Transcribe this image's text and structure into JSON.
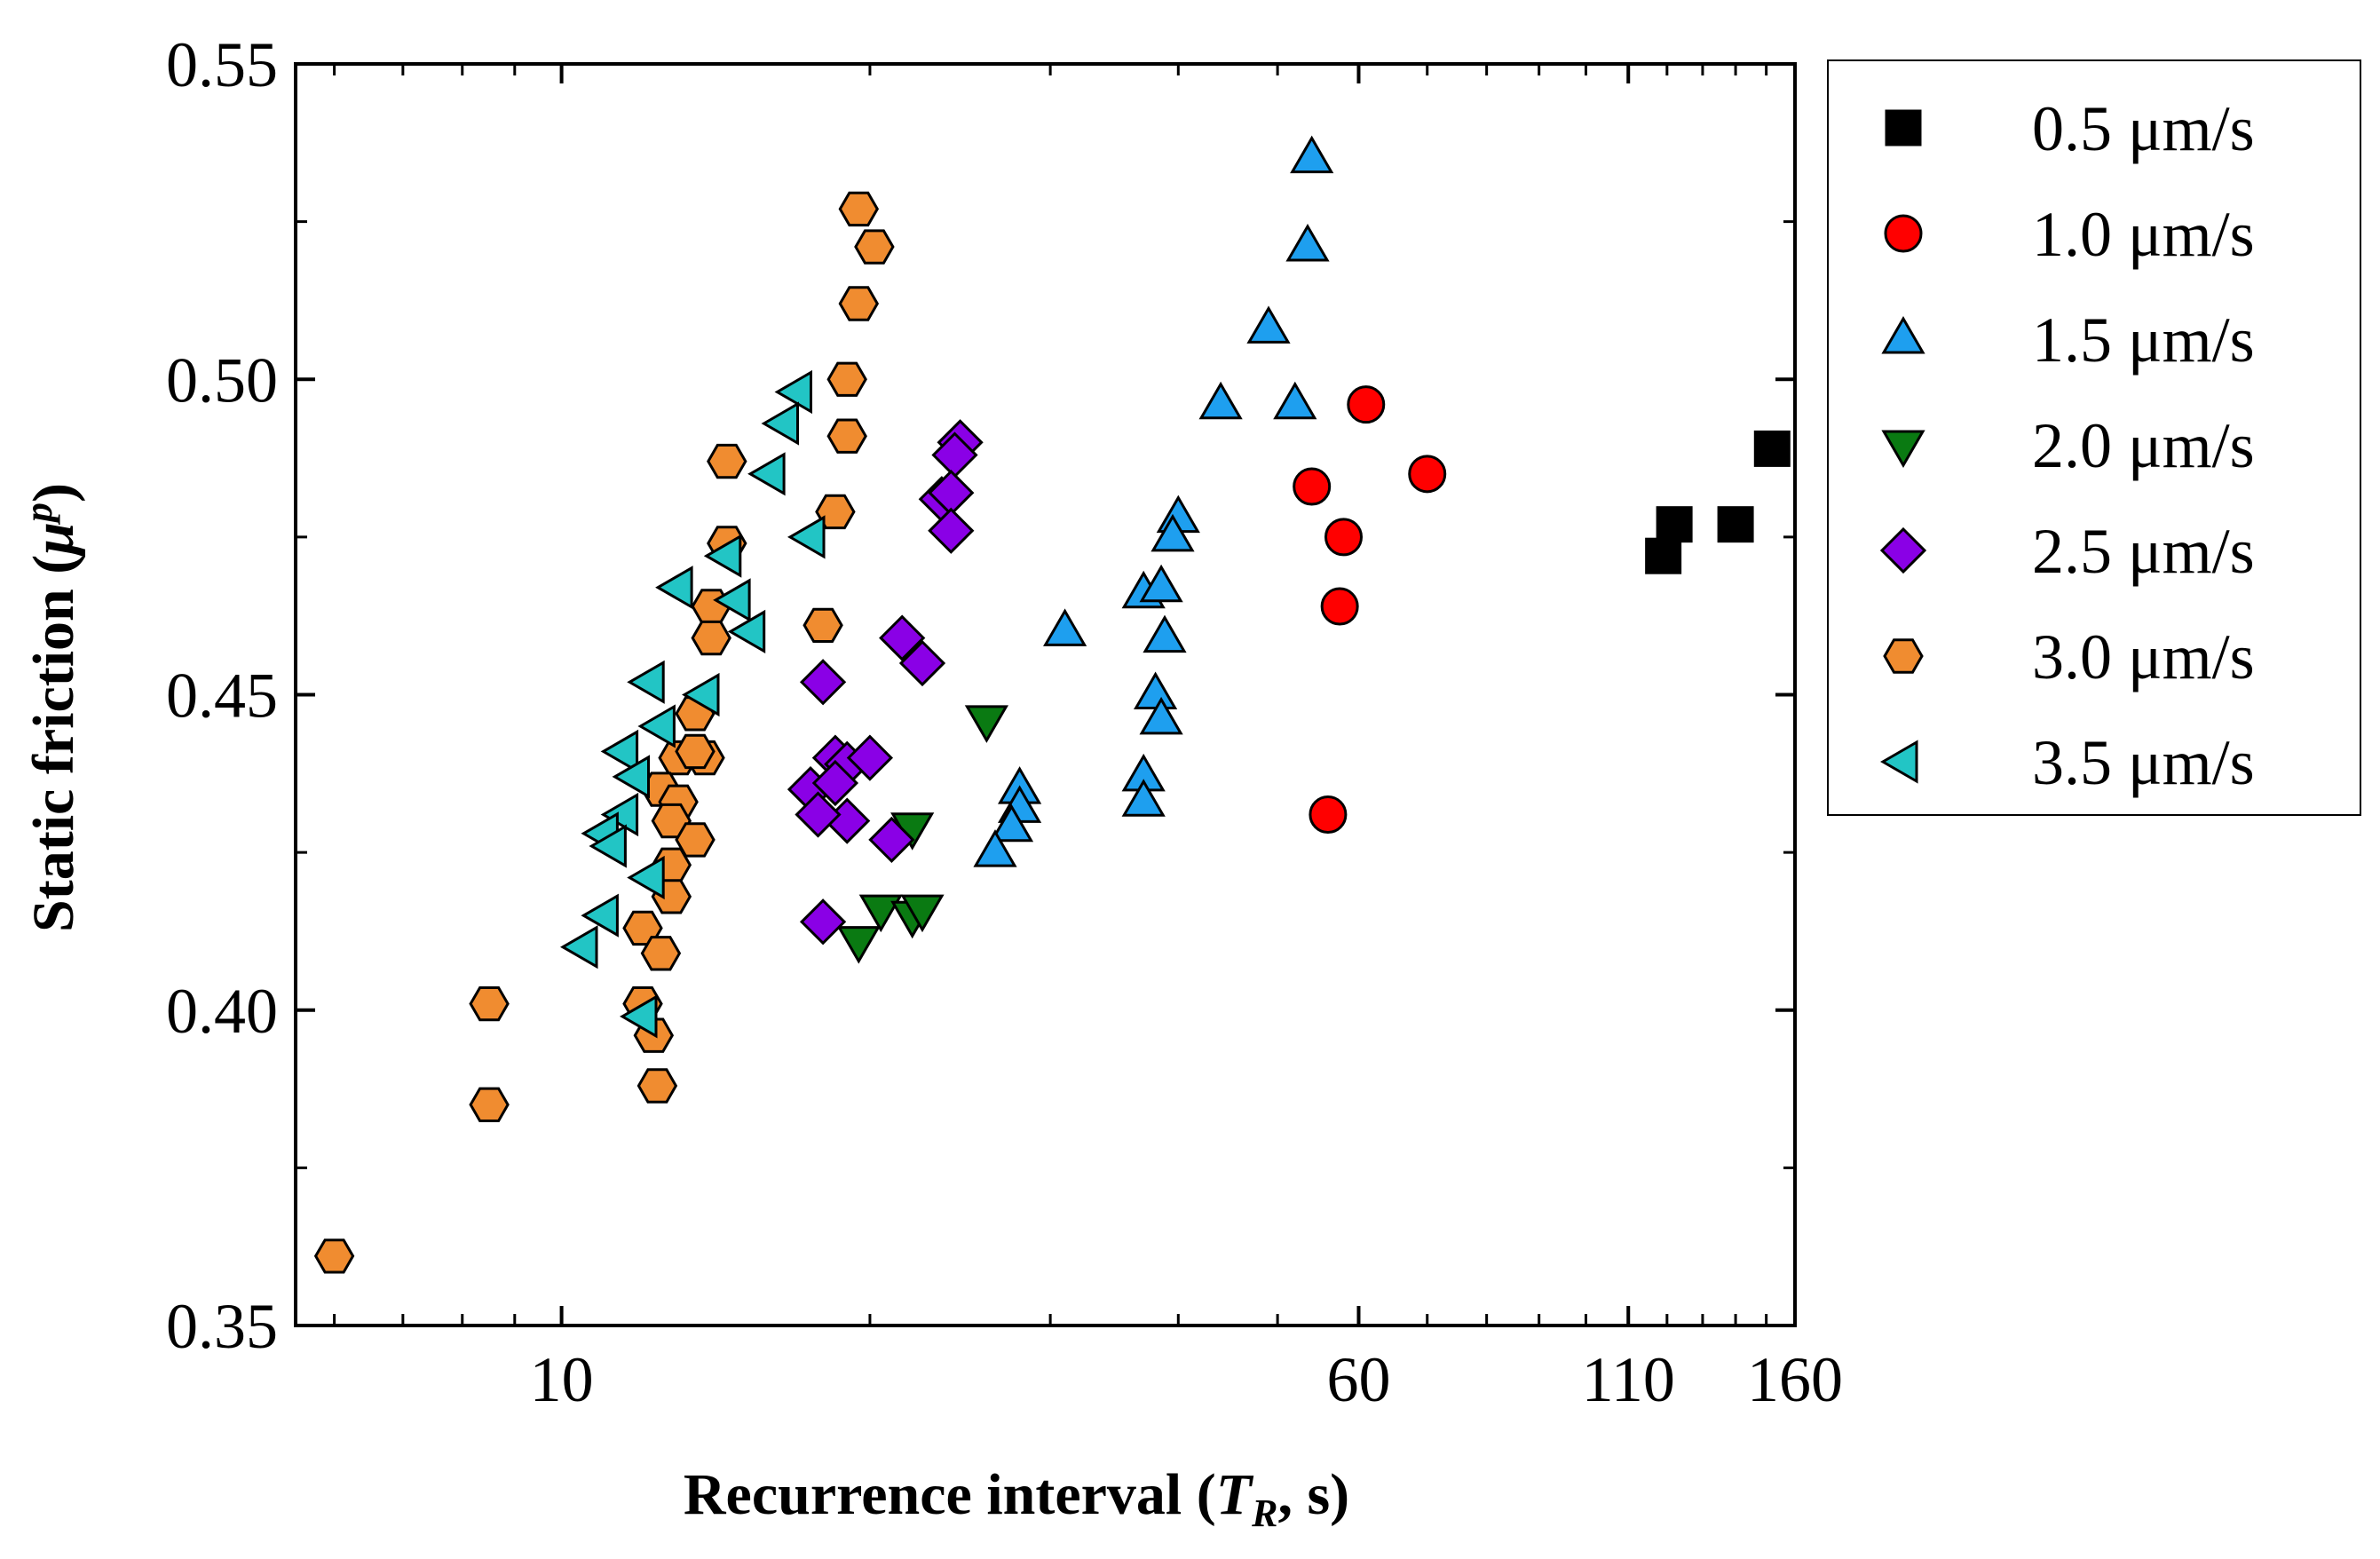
{
  "chart_data": {
    "type": "scatter",
    "title": "",
    "xlabel": {
      "prefix": "Recurrence interval (",
      "var": "T",
      "sub": "R",
      "suffix": ", s)"
    },
    "ylabel": {
      "prefix": "Static friction (",
      "var": "μ",
      "sup": "p",
      "suffix": ")"
    },
    "xscale": "log",
    "xlim": [
      5.5,
      160
    ],
    "ylim": [
      0.35,
      0.55
    ],
    "grid": false,
    "legend_position": "outside-right",
    "x_ticks": [
      {
        "value": 10,
        "label": "10"
      },
      {
        "value": 60,
        "label": "60"
      },
      {
        "value": 110,
        "label": "110"
      },
      {
        "value": 160,
        "label": "160"
      }
    ],
    "y_ticks": [
      {
        "value": 0.35,
        "label": "0.35"
      },
      {
        "value": 0.4,
        "label": "0.40"
      },
      {
        "value": 0.45,
        "label": "0.45"
      },
      {
        "value": 0.5,
        "label": "0.50"
      },
      {
        "value": 0.55,
        "label": "0.55"
      }
    ],
    "series": [
      {
        "name": "0.5 μm/s",
        "marker": "square",
        "color": "#000000",
        "points": [
          [
            119,
            0.472
          ],
          [
            122,
            0.477
          ],
          [
            140,
            0.477
          ],
          [
            152,
            0.489
          ]
        ]
      },
      {
        "name": "1.0 μm/s",
        "marker": "circle",
        "color": "#ff0000",
        "points": [
          [
            54,
            0.483
          ],
          [
            58,
            0.475
          ],
          [
            61,
            0.496
          ],
          [
            57.5,
            0.464
          ],
          [
            70,
            0.485
          ],
          [
            56,
            0.431
          ]
        ]
      },
      {
        "name": "1.5 μm/s",
        "marker": "triangle-up",
        "color": "#1e9fef",
        "points": [
          [
            54,
            0.535
          ],
          [
            53.5,
            0.521
          ],
          [
            49,
            0.508
          ],
          [
            44,
            0.496
          ],
          [
            52,
            0.496
          ],
          [
            40,
            0.478
          ],
          [
            39.5,
            0.475
          ],
          [
            37,
            0.466
          ],
          [
            38.5,
            0.467
          ],
          [
            38.8,
            0.459
          ],
          [
            31,
            0.46
          ],
          [
            38,
            0.45
          ],
          [
            38.5,
            0.446
          ],
          [
            37,
            0.437
          ],
          [
            37,
            0.433
          ],
          [
            28,
            0.435
          ],
          [
            28,
            0.432
          ],
          [
            27.5,
            0.429
          ],
          [
            26.5,
            0.425
          ]
        ]
      },
      {
        "name": "2.0 μm/s",
        "marker": "triangle-down",
        "color": "#0a7a12",
        "points": [
          [
            26,
            0.446
          ],
          [
            22,
            0.429
          ],
          [
            20.5,
            0.416
          ],
          [
            22,
            0.415
          ],
          [
            22.5,
            0.416
          ],
          [
            19.5,
            0.411
          ]
        ]
      },
      {
        "name": "2.5 μm/s",
        "marker": "diamond",
        "color": "#8a00e6",
        "points": [
          [
            24.5,
            0.49
          ],
          [
            24.2,
            0.488
          ],
          [
            23.5,
            0.481
          ],
          [
            24,
            0.482
          ],
          [
            24,
            0.476
          ],
          [
            21.5,
            0.459
          ],
          [
            22.5,
            0.455
          ],
          [
            18,
            0.452
          ],
          [
            18.5,
            0.44
          ],
          [
            19,
            0.439
          ],
          [
            20,
            0.44
          ],
          [
            17.5,
            0.435
          ],
          [
            18.5,
            0.436
          ],
          [
            19,
            0.43
          ],
          [
            17.8,
            0.431
          ],
          [
            21,
            0.427
          ],
          [
            18,
            0.414
          ]
        ]
      },
      {
        "name": "3.0 μm/s",
        "marker": "hexagon",
        "color": "#f08c30",
        "points": [
          [
            19.5,
            0.527
          ],
          [
            20.2,
            0.521
          ],
          [
            19.5,
            0.512
          ],
          [
            19,
            0.5
          ],
          [
            18.5,
            0.479
          ],
          [
            19,
            0.491
          ],
          [
            14.5,
            0.487
          ],
          [
            14.5,
            0.474
          ],
          [
            18,
            0.461
          ],
          [
            14,
            0.464
          ],
          [
            14,
            0.459
          ],
          [
            13.5,
            0.447
          ],
          [
            13,
            0.44
          ],
          [
            13.8,
            0.44
          ],
          [
            13.5,
            0.441
          ],
          [
            12.5,
            0.435
          ],
          [
            13,
            0.433
          ],
          [
            12.8,
            0.43
          ],
          [
            13.5,
            0.427
          ],
          [
            12.8,
            0.423
          ],
          [
            12.8,
            0.418
          ],
          [
            12,
            0.413
          ],
          [
            12.5,
            0.409
          ],
          [
            12,
            0.401
          ],
          [
            12.3,
            0.396
          ],
          [
            12.4,
            0.388
          ],
          [
            8.5,
            0.401
          ],
          [
            8.5,
            0.385
          ],
          [
            6,
            0.361
          ]
        ]
      },
      {
        "name": "3.5 μm/s",
        "marker": "triangle-left",
        "color": "#22c5c5",
        "points": [
          [
            17,
            0.498
          ],
          [
            16.5,
            0.493
          ],
          [
            16,
            0.485
          ],
          [
            17.5,
            0.475
          ],
          [
            13,
            0.467
          ],
          [
            14.5,
            0.472
          ],
          [
            14.8,
            0.465
          ],
          [
            15.3,
            0.46
          ],
          [
            13.8,
            0.45
          ],
          [
            12.2,
            0.452
          ],
          [
            12.5,
            0.445
          ],
          [
            11.5,
            0.441
          ],
          [
            11.8,
            0.437
          ],
          [
            11.5,
            0.431
          ],
          [
            11,
            0.428
          ],
          [
            11.2,
            0.426
          ],
          [
            12.2,
            0.421
          ],
          [
            11,
            0.415
          ],
          [
            10.5,
            0.41
          ],
          [
            12,
            0.399
          ]
        ]
      }
    ]
  }
}
